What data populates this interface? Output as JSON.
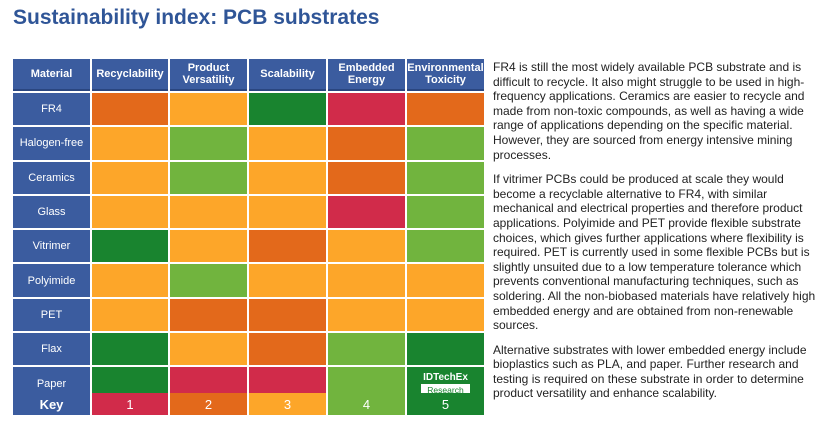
{
  "title": "Sustainability index: PCB substrates",
  "colors": {
    "1": "#d12b4a",
    "2": "#e3691b",
    "3": "#fda629",
    "4": "#71b43e",
    "5": "#19842f",
    "header": "#3b5c9f"
  },
  "table": {
    "headers": [
      "Material",
      "Recyclability",
      "Product Versatility",
      "Scalability",
      "Embedded Energy",
      "Environmental Toxicity"
    ],
    "rows": [
      {
        "material": "FR4",
        "scores": [
          2,
          3,
          5,
          1,
          2
        ]
      },
      {
        "material": "Halogen-free",
        "scores": [
          3,
          4,
          3,
          2,
          4
        ]
      },
      {
        "material": "Ceramics",
        "scores": [
          3,
          4,
          3,
          2,
          4
        ]
      },
      {
        "material": "Glass",
        "scores": [
          3,
          3,
          3,
          1,
          4
        ]
      },
      {
        "material": "Vitrimer",
        "scores": [
          5,
          3,
          2,
          3,
          4
        ]
      },
      {
        "material": "Polyimide",
        "scores": [
          3,
          4,
          3,
          3,
          3
        ]
      },
      {
        "material": "PET",
        "scores": [
          3,
          2,
          2,
          3,
          3
        ]
      },
      {
        "material": "Flax",
        "scores": [
          5,
          3,
          2,
          4,
          5
        ]
      },
      {
        "material": "Paper",
        "scores": [
          5,
          1,
          1,
          4,
          5
        ]
      }
    ]
  },
  "logo": {
    "name": "IDTechEx",
    "sub": "Research"
  },
  "key": {
    "label": "Key",
    "values": [
      "1",
      "2",
      "3",
      "4",
      "5"
    ]
  },
  "paragraphs": [
    "FR4 is still the most widely available PCB substrate and is difficult to recycle. It also might struggle to be used in high-frequency applications. Ceramics are easier to recycle and made from non-toxic compounds, as well as having a wide range of applications depending on the specific material. However, they are sourced from energy intensive mining processes.",
    "If vitrimer PCBs could be produced at scale they would become a recyclable alternative to FR4, with similar mechanical and electrical properties and therefore product applications. Polyimide and PET provide flexible substrate choices, which gives further applications where flexibility is required. PET is currently used in some flexible PCBs but is slightly unsuited due to a low temperature tolerance which prevents conventional manufacturing techniques, such as soldering. All the non-biobased materials have relatively high embedded energy and are obtained from non-renewable sources.",
    "Alternative substrates with lower embedded energy include bioplastics such as PLA, and paper. Further research and testing is required on these substrate in order to determine product versatility and enhance scalability."
  ]
}
